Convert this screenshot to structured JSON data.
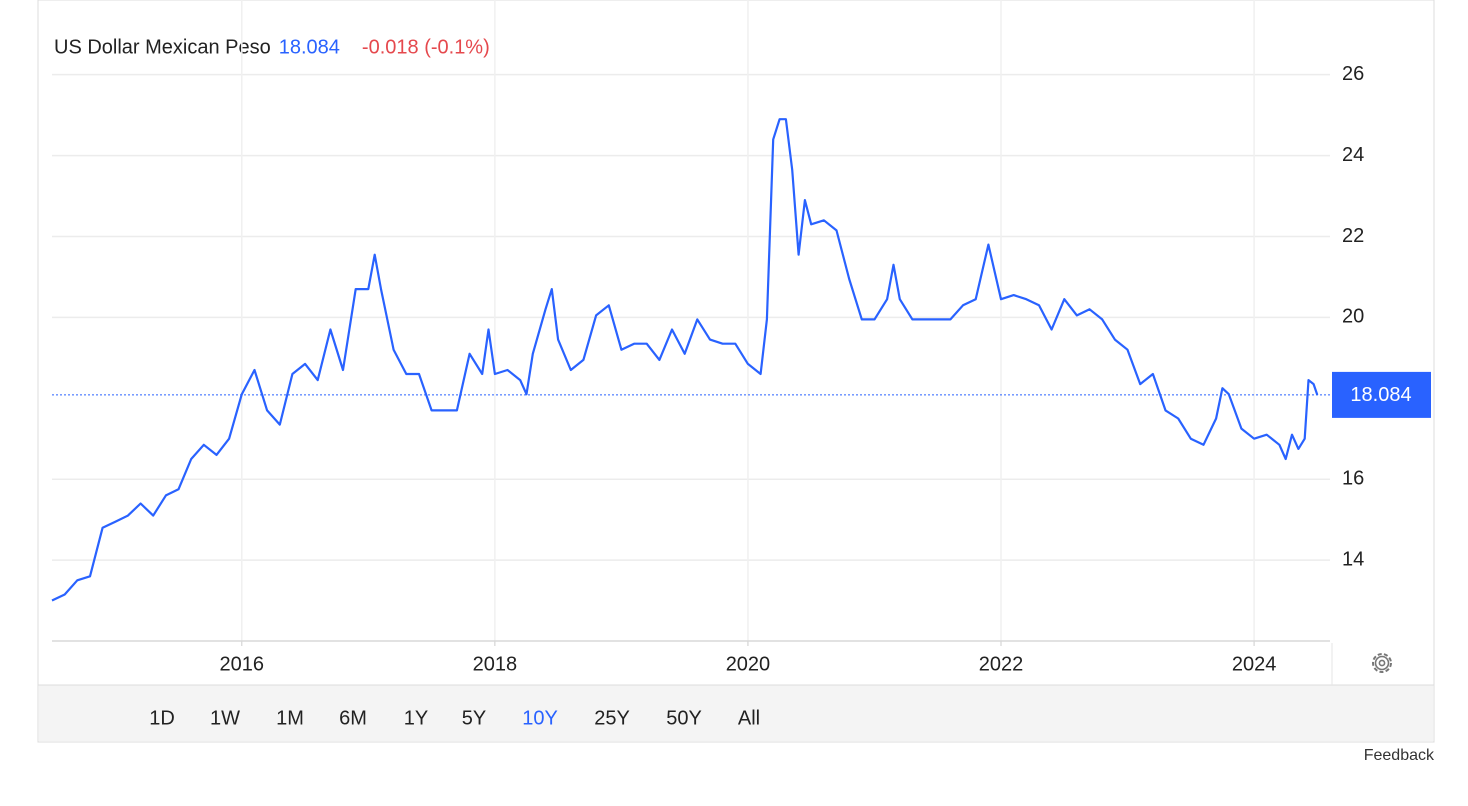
{
  "chart_data": {
    "type": "line",
    "title": "US Dollar Mexican Peso",
    "current_value": 18.084,
    "change": "-0.018 (-0.1%)",
    "xlim": [
      2014.5,
      2024.6
    ],
    "xticks": [
      2016,
      2018,
      2020,
      2022,
      2024
    ],
    "ylim": [
      12,
      27.5
    ],
    "yticks": [
      14,
      16,
      20,
      22,
      24,
      26
    ],
    "grid": true,
    "series": [
      {
        "name": "US Dollar Mexican Peso",
        "color": "#2962ff",
        "x": [
          2014.5,
          2014.6,
          2014.7,
          2014.8,
          2014.9,
          2015.0,
          2015.1,
          2015.2,
          2015.3,
          2015.4,
          2015.5,
          2015.6,
          2015.7,
          2015.8,
          2015.9,
          2016.0,
          2016.1,
          2016.2,
          2016.3,
          2016.4,
          2016.5,
          2016.6,
          2016.7,
          2016.8,
          2016.9,
          2017.0,
          2017.05,
          2017.1,
          2017.2,
          2017.3,
          2017.4,
          2017.5,
          2017.6,
          2017.7,
          2017.8,
          2017.9,
          2017.95,
          2018.0,
          2018.1,
          2018.2,
          2018.25,
          2018.3,
          2018.4,
          2018.45,
          2018.5,
          2018.6,
          2018.7,
          2018.8,
          2018.9,
          2019.0,
          2019.1,
          2019.2,
          2019.3,
          2019.4,
          2019.5,
          2019.6,
          2019.7,
          2019.8,
          2019.9,
          2020.0,
          2020.1,
          2020.15,
          2020.2,
          2020.25,
          2020.3,
          2020.35,
          2020.4,
          2020.45,
          2020.5,
          2020.6,
          2020.7,
          2020.8,
          2020.9,
          2021.0,
          2021.1,
          2021.15,
          2021.2,
          2021.3,
          2021.4,
          2021.5,
          2021.6,
          2021.7,
          2021.8,
          2021.9,
          2022.0,
          2022.1,
          2022.2,
          2022.3,
          2022.4,
          2022.5,
          2022.6,
          2022.7,
          2022.8,
          2022.9,
          2023.0,
          2023.1,
          2023.2,
          2023.3,
          2023.4,
          2023.5,
          2023.6,
          2023.7,
          2023.75,
          2023.8,
          2023.9,
          2024.0,
          2024.1,
          2024.2,
          2024.25,
          2024.3,
          2024.35,
          2024.4,
          2024.43,
          2024.47,
          2024.5
        ],
        "values": [
          13.0,
          13.15,
          13.5,
          13.6,
          14.8,
          14.95,
          15.1,
          15.4,
          15.1,
          15.6,
          15.75,
          16.5,
          16.85,
          16.6,
          17.0,
          18.1,
          18.7,
          17.7,
          17.35,
          18.6,
          18.85,
          18.45,
          19.7,
          18.7,
          20.7,
          20.7,
          21.55,
          20.7,
          19.2,
          18.6,
          18.6,
          17.7,
          17.7,
          17.7,
          19.1,
          18.6,
          19.7,
          18.6,
          18.7,
          18.45,
          18.1,
          19.1,
          20.2,
          20.7,
          19.45,
          18.7,
          18.95,
          20.05,
          20.3,
          19.2,
          19.35,
          19.35,
          18.95,
          19.7,
          19.1,
          19.95,
          19.45,
          19.35,
          19.35,
          18.85,
          18.6,
          19.95,
          24.4,
          24.9,
          24.9,
          23.65,
          21.55,
          22.9,
          22.3,
          22.4,
          22.15,
          20.95,
          19.95,
          19.95,
          20.45,
          21.3,
          20.45,
          19.95,
          19.95,
          19.95,
          19.95,
          20.3,
          20.45,
          21.8,
          20.45,
          20.55,
          20.45,
          20.3,
          19.7,
          20.45,
          20.05,
          20.2,
          19.95,
          19.45,
          19.2,
          18.35,
          18.6,
          17.7,
          17.5,
          17.0,
          16.85,
          17.5,
          18.25,
          18.1,
          17.25,
          17.0,
          17.1,
          16.85,
          16.5,
          17.1,
          16.75,
          17.0,
          18.45,
          18.35,
          18.084
        ]
      }
    ],
    "ranges": [
      "1D",
      "1W",
      "1M",
      "6M",
      "1Y",
      "5Y",
      "10Y",
      "25Y",
      "50Y",
      "All"
    ],
    "selected_range": "10Y",
    "feedback": "Feedback"
  }
}
